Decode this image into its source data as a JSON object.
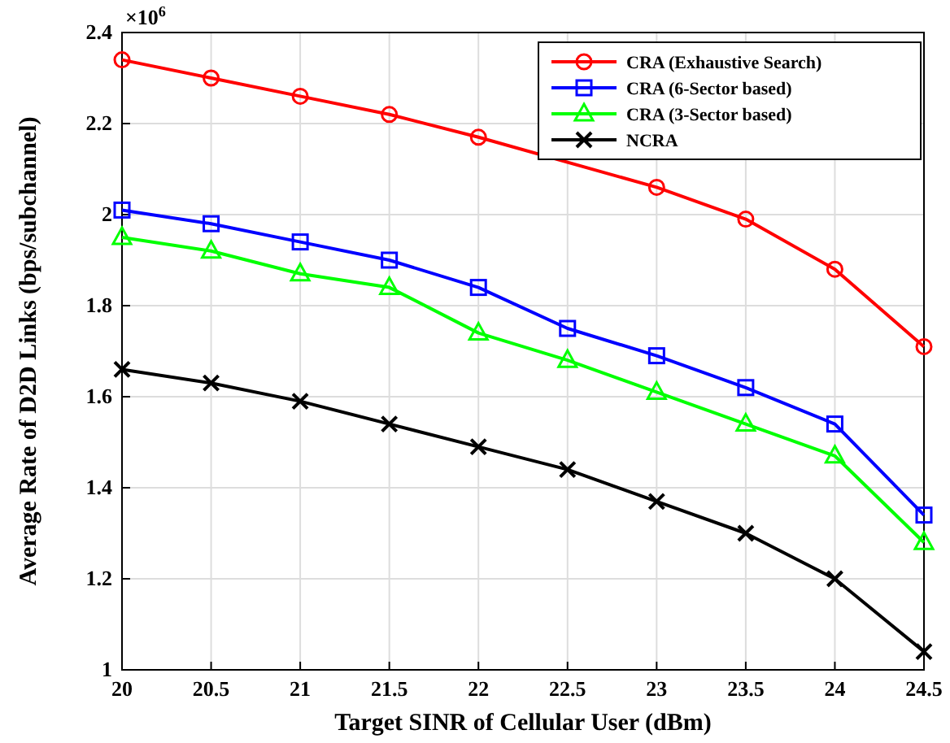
{
  "chart_data": {
    "type": "line",
    "xlabel": "Target SINR of Cellular User (dBm)",
    "ylabel": "Average Rate of D2D Links (bps/subchannel)",
    "annotations": [
      "×10$^{6}$"
    ],
    "x": [
      20,
      20.5,
      21,
      21.5,
      22,
      22.5,
      23,
      23.5,
      24,
      24.5
    ],
    "xlim": [
      20,
      24.5
    ],
    "xticks": [
      20,
      20.5,
      21,
      21.5,
      22,
      22.5,
      23,
      23.5,
      24,
      24.5
    ],
    "ylim": [
      1,
      2.4
    ],
    "yticks": [
      1,
      1.2,
      1.4,
      1.6,
      1.8,
      2,
      2.2,
      2.4
    ],
    "grid": true,
    "legend": "top right",
    "line_style": "solid",
    "series": [
      {
        "name": "CRA (Exhaustive Search)",
        "color": "#ff0000",
        "marker": "circle",
        "values": [
          2.34,
          2.3,
          2.26,
          2.22,
          2.17,
          null,
          2.06,
          1.99,
          1.88,
          1.71
        ]
      },
      {
        "name": "CRA (6-Sector based)",
        "color": "#0000ff",
        "marker": "square",
        "values": [
          2.01,
          1.98,
          1.94,
          1.9,
          1.84,
          1.75,
          1.69,
          1.62,
          1.54,
          1.34
        ]
      },
      {
        "name": "CRA (3-Sector based)",
        "color": "#00ff00",
        "marker": "triangle",
        "values": [
          1.95,
          1.92,
          1.87,
          1.84,
          1.74,
          1.68,
          1.61,
          1.54,
          1.47,
          1.28
        ]
      },
      {
        "name": "NCRA",
        "color": "#000000",
        "marker": "cross",
        "values": [
          1.66,
          1.63,
          1.59,
          1.54,
          1.49,
          1.44,
          1.37,
          1.3,
          1.2,
          1.04
        ]
      }
    ]
  }
}
